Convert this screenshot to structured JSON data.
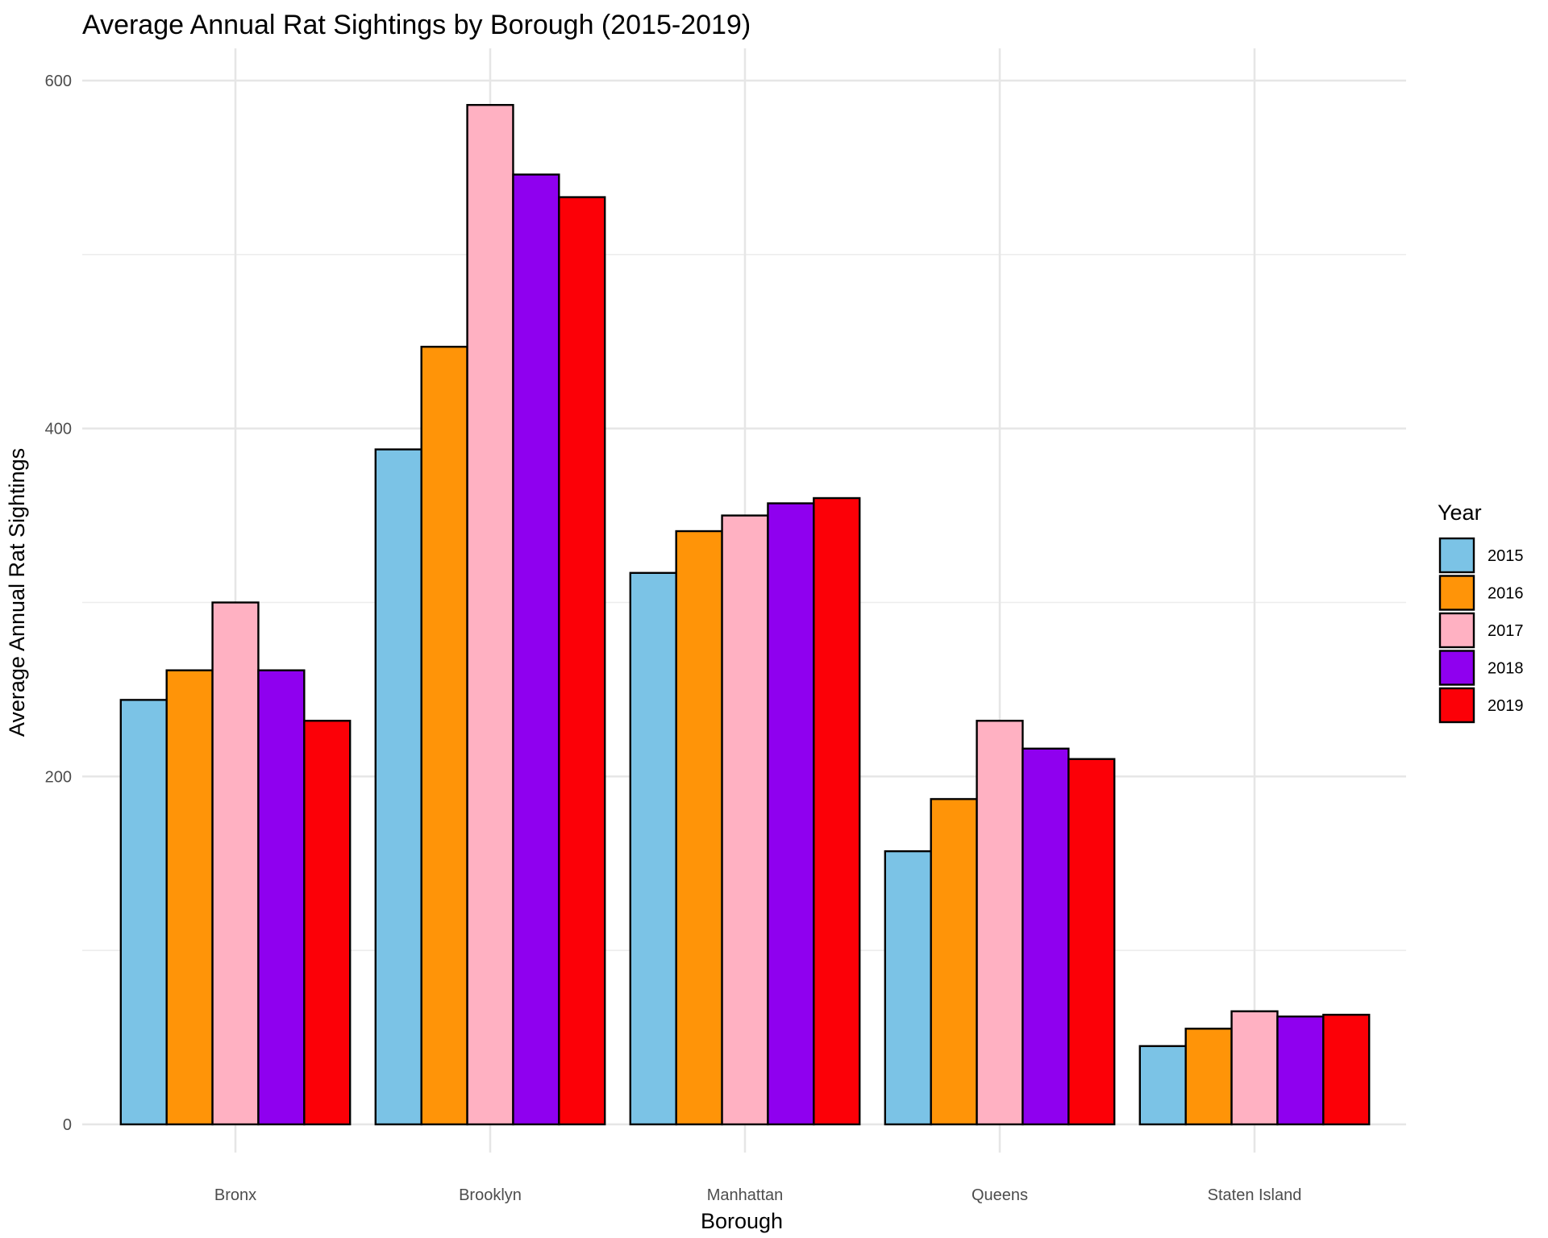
{
  "chart_data": {
    "type": "bar",
    "title": "Average Annual Rat Sightings by Borough (2015-2019)",
    "xlabel": "Borough",
    "ylabel": "Average Annual Rat Sightings",
    "ylim": [
      -15,
      615
    ],
    "y_ticks": [
      0,
      200,
      400,
      600
    ],
    "grid": true,
    "legend": {
      "title": "Year",
      "position": "right"
    },
    "categories": [
      "Bronx",
      "Brooklyn",
      "Manhattan",
      "Queens",
      "Staten Island"
    ],
    "series": [
      {
        "name": "2015",
        "color": "#7BC3E6",
        "values": [
          244,
          388,
          317,
          157,
          45
        ]
      },
      {
        "name": "2016",
        "color": "#FF9408",
        "values": [
          261,
          447,
          341,
          187,
          55
        ]
      },
      {
        "name": "2017",
        "color": "#FFB1C2",
        "values": [
          300,
          586,
          350,
          232,
          65
        ]
      },
      {
        "name": "2018",
        "color": "#8F00EF",
        "values": [
          261,
          546,
          357,
          216,
          62
        ]
      },
      {
        "name": "2019",
        "color": "#FC0007",
        "values": [
          232,
          533,
          360,
          210,
          63
        ]
      }
    ]
  }
}
